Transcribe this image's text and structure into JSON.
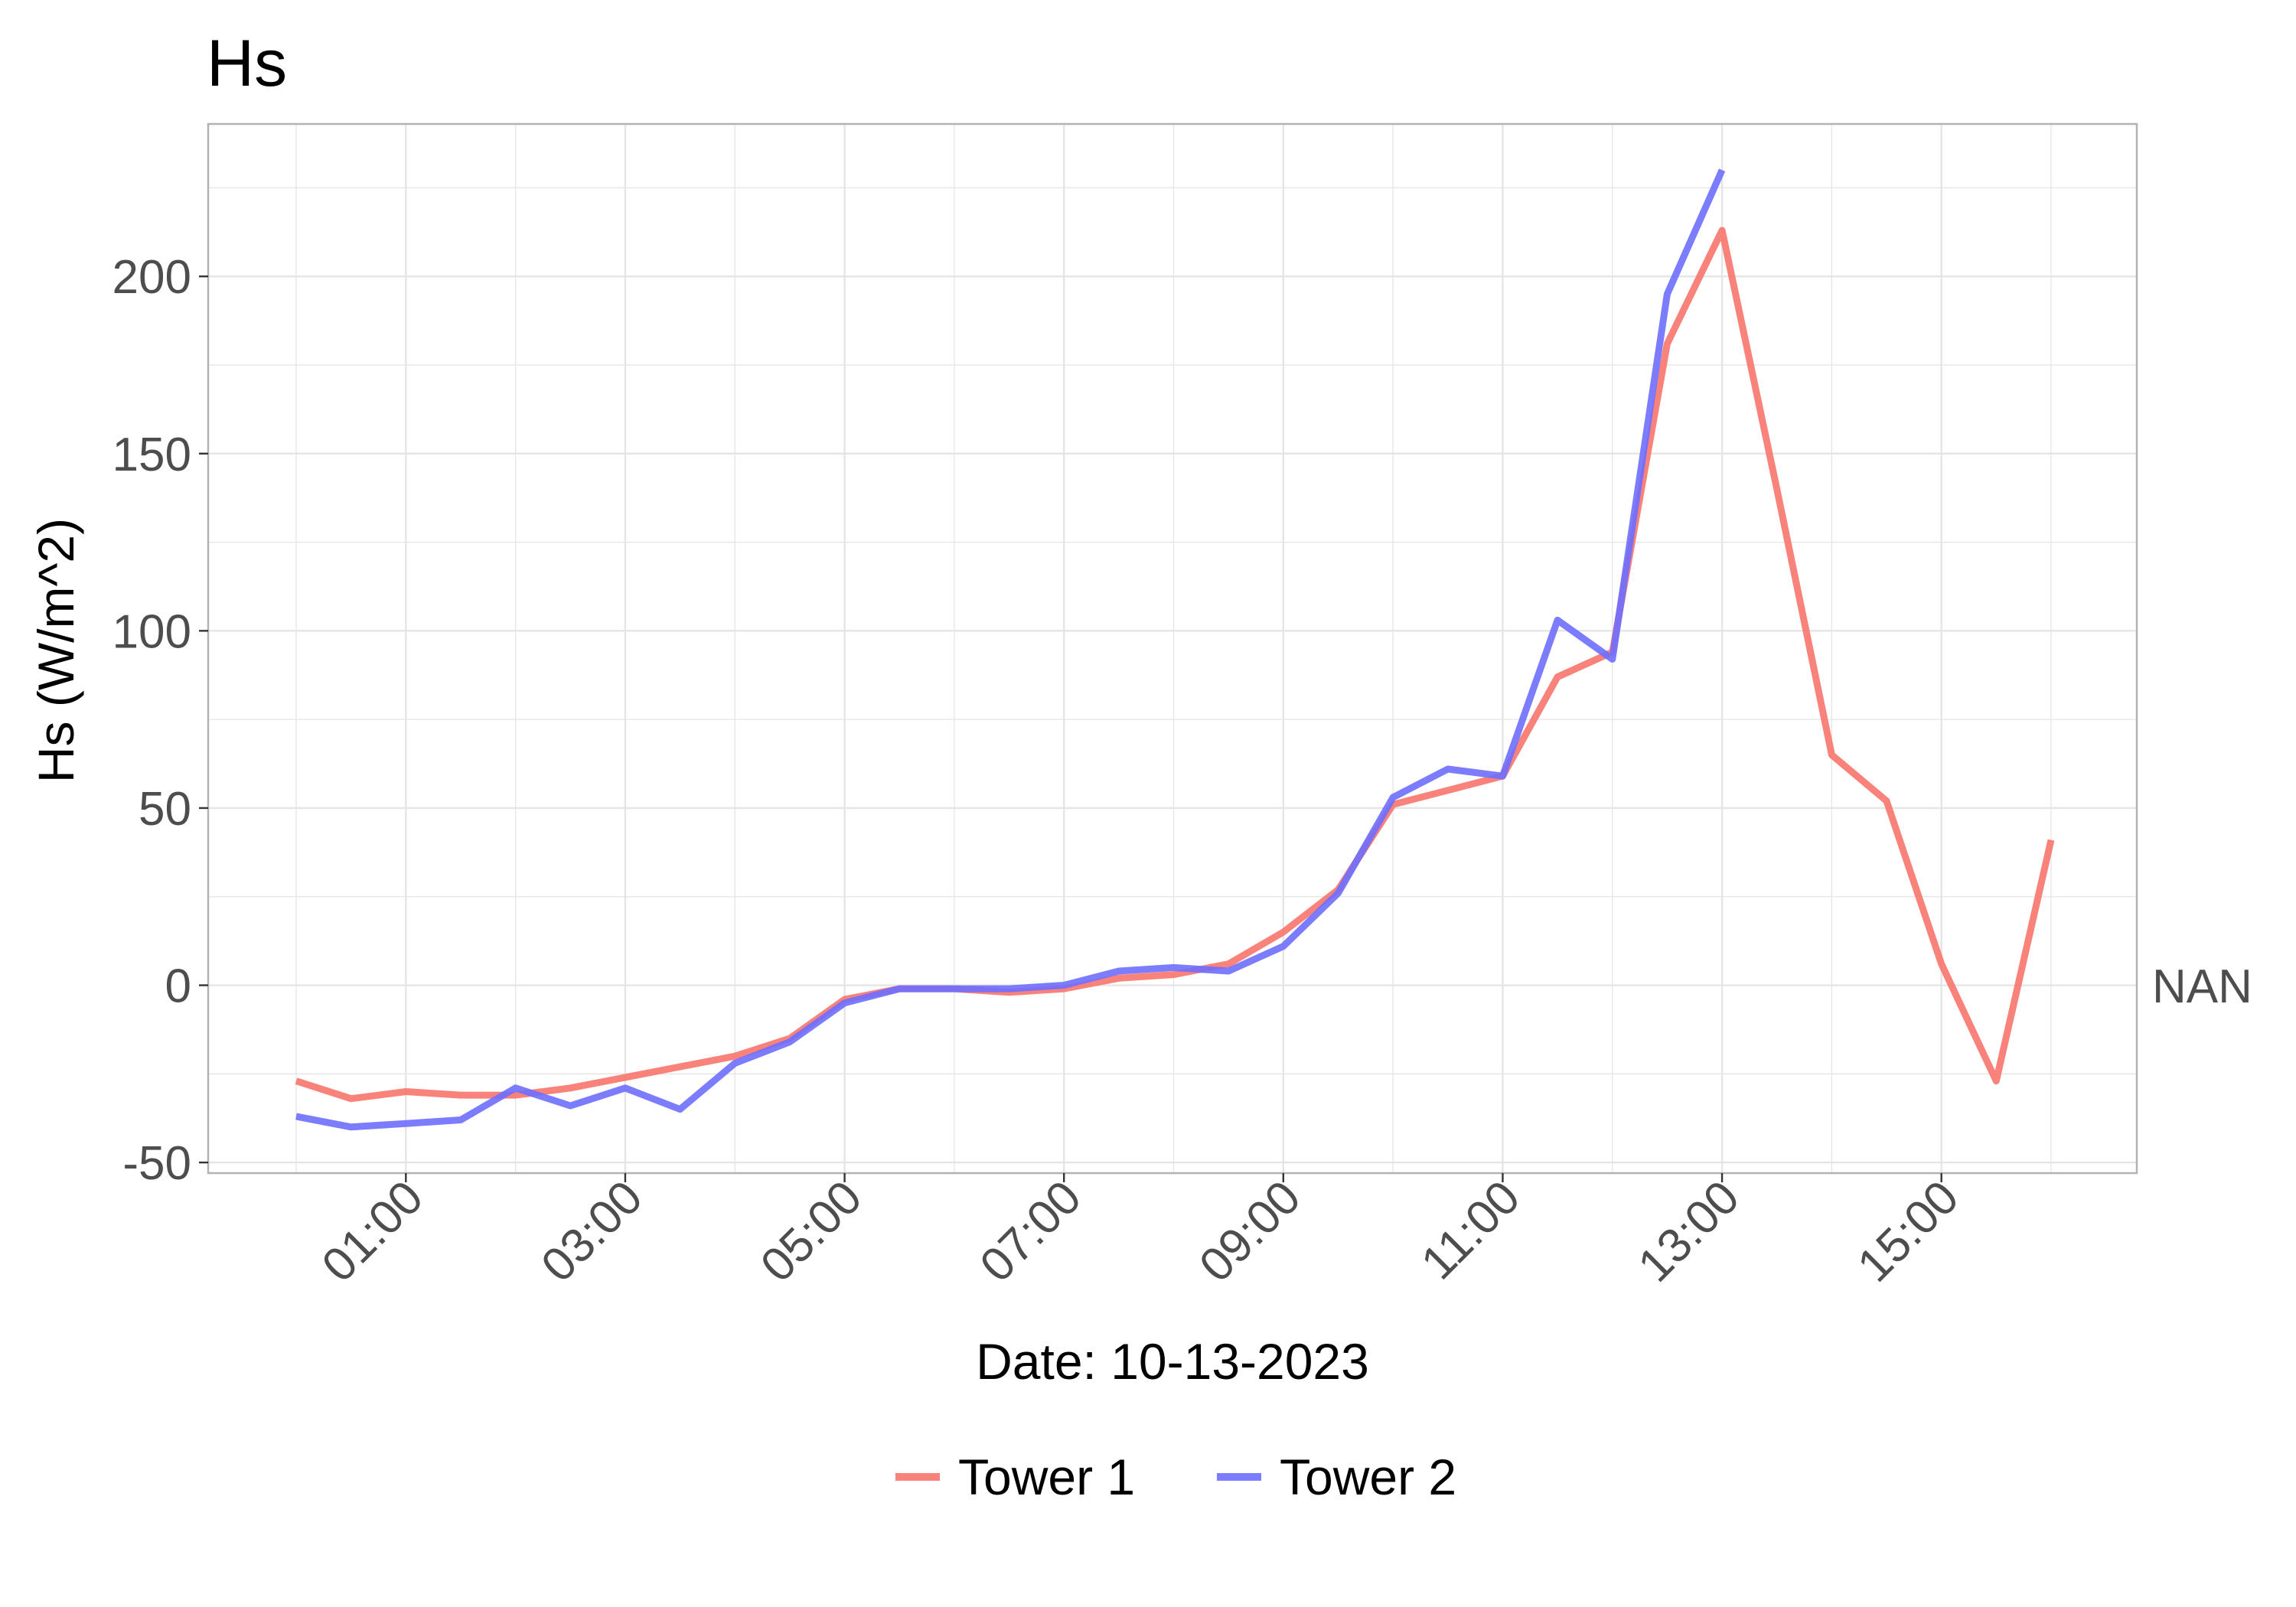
{
  "chart_data": {
    "type": "line",
    "title": "Hs",
    "xlabel": "Date: 10-13-2023",
    "ylabel": "Hs (W/m^2)",
    "secondary_axis_label": "NAN",
    "x_tick_labels": [
      "01:00",
      "03:00",
      "05:00",
      "07:00",
      "09:00",
      "11:00",
      "13:00",
      "15:00"
    ],
    "y_tick_labels": [
      "-50",
      "0",
      "50",
      "100",
      "150",
      "200"
    ],
    "y_ticks": [
      -50,
      0,
      50,
      100,
      150,
      200
    ],
    "ylim": [
      -53,
      243
    ],
    "xlim": [
      "00:00",
      "16:00"
    ],
    "x": [
      "00:00",
      "00:30",
      "01:00",
      "01:30",
      "02:00",
      "02:30",
      "03:00",
      "03:30",
      "04:00",
      "04:30",
      "05:00",
      "05:30",
      "06:00",
      "06:30",
      "07:00",
      "07:30",
      "08:00",
      "08:30",
      "09:00",
      "09:30",
      "10:00",
      "10:30",
      "11:00",
      "11:30",
      "12:00",
      "12:30",
      "13:00",
      "13:30",
      "14:00",
      "14:30",
      "15:00",
      "15:30",
      "16:00"
    ],
    "grid": true,
    "legend_position": "bottom",
    "series": [
      {
        "name": "Tower 1",
        "color": "#f8766d",
        "values": [
          -27,
          -32,
          -30,
          -31,
          -31,
          -29,
          -26,
          -23,
          -20,
          -15,
          -4,
          -1,
          -1,
          -2,
          -1,
          2,
          3,
          6,
          15,
          27,
          51,
          55,
          59,
          87,
          94,
          181,
          213,
          140,
          65,
          52,
          6,
          -27,
          41
        ]
      },
      {
        "name": "Tower 2",
        "color": "#6e6eff",
        "values": [
          -37,
          -40,
          -39,
          -38,
          -29,
          -34,
          -29,
          -35,
          -22,
          -16,
          -5,
          -1,
          -1,
          -1,
          0,
          4,
          5,
          4,
          11,
          26,
          53,
          61,
          59,
          103,
          92,
          195,
          230,
          null,
          null,
          null,
          null,
          null,
          null
        ]
      }
    ]
  }
}
